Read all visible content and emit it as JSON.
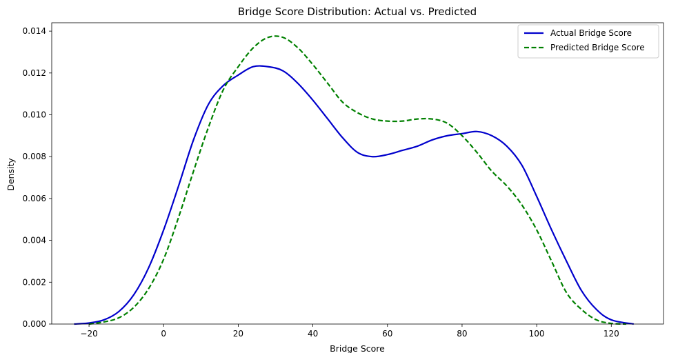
{
  "chart_data": {
    "type": "line",
    "title": "Bridge Score Distribution: Actual vs. Predicted",
    "xlabel": "Bridge Score",
    "ylabel": "Density",
    "xlim": [
      -30,
      134
    ],
    "ylim": [
      0,
      0.0144
    ],
    "x_ticks": [
      -20,
      0,
      20,
      40,
      60,
      80,
      100,
      120
    ],
    "x_tick_labels": [
      "−20",
      "0",
      "20",
      "40",
      "60",
      "80",
      "100",
      "120"
    ],
    "y_ticks": [
      0,
      0.002,
      0.004,
      0.006,
      0.008,
      0.01,
      0.012,
      0.014
    ],
    "y_tick_labels": [
      "0.000",
      "0.002",
      "0.004",
      "0.006",
      "0.008",
      "0.010",
      "0.012",
      "0.014"
    ],
    "grid": false,
    "legend": {
      "position": "top-right",
      "entries": [
        "Actual Bridge Score",
        "Predicted Bridge Score"
      ]
    },
    "series": [
      {
        "name": "Actual Bridge Score",
        "color": "#0000cc",
        "style": "solid",
        "points": [
          [
            -24,
            0.0
          ],
          [
            -20,
            5e-05
          ],
          [
            -16,
            0.0002
          ],
          [
            -12,
            0.0006
          ],
          [
            -8,
            0.0014
          ],
          [
            -4,
            0.0027
          ],
          [
            0,
            0.0045
          ],
          [
            4,
            0.0066
          ],
          [
            8,
            0.0088
          ],
          [
            12,
            0.0105
          ],
          [
            16,
            0.0114
          ],
          [
            20,
            0.0119
          ],
          [
            24,
            0.0123
          ],
          [
            28,
            0.0123
          ],
          [
            32,
            0.0121
          ],
          [
            36,
            0.0115
          ],
          [
            40,
            0.0107
          ],
          [
            44,
            0.0098
          ],
          [
            48,
            0.0089
          ],
          [
            52,
            0.0082
          ],
          [
            56,
            0.008
          ],
          [
            60,
            0.0081
          ],
          [
            64,
            0.0083
          ],
          [
            68,
            0.0085
          ],
          [
            72,
            0.0088
          ],
          [
            76,
            0.009
          ],
          [
            80,
            0.0091
          ],
          [
            84,
            0.0092
          ],
          [
            88,
            0.009
          ],
          [
            92,
            0.0085
          ],
          [
            96,
            0.0076
          ],
          [
            100,
            0.0061
          ],
          [
            104,
            0.0045
          ],
          [
            108,
            0.003
          ],
          [
            112,
            0.0016
          ],
          [
            116,
            0.0007
          ],
          [
            120,
            0.0002
          ],
          [
            126,
            0.0
          ]
        ]
      },
      {
        "name": "Predicted Bridge Score",
        "color": "#008000",
        "style": "dashed",
        "points": [
          [
            -20,
            0.0
          ],
          [
            -16,
            0.0001
          ],
          [
            -12,
            0.0003
          ],
          [
            -8,
            0.0008
          ],
          [
            -4,
            0.0017
          ],
          [
            0,
            0.0031
          ],
          [
            4,
            0.0051
          ],
          [
            8,
            0.0073
          ],
          [
            12,
            0.0094
          ],
          [
            16,
            0.0112
          ],
          [
            20,
            0.0123
          ],
          [
            24,
            0.0132
          ],
          [
            28,
            0.0137
          ],
          [
            32,
            0.0137
          ],
          [
            36,
            0.0132
          ],
          [
            40,
            0.0124
          ],
          [
            44,
            0.0115
          ],
          [
            48,
            0.0106
          ],
          [
            52,
            0.0101
          ],
          [
            56,
            0.0098
          ],
          [
            60,
            0.0097
          ],
          [
            64,
            0.0097
          ],
          [
            68,
            0.0098
          ],
          [
            72,
            0.0098
          ],
          [
            76,
            0.0096
          ],
          [
            80,
            0.009
          ],
          [
            84,
            0.0082
          ],
          [
            88,
            0.0073
          ],
          [
            92,
            0.0066
          ],
          [
            96,
            0.0057
          ],
          [
            100,
            0.0045
          ],
          [
            104,
            0.003
          ],
          [
            108,
            0.0015
          ],
          [
            112,
            0.0007
          ],
          [
            116,
            0.0002
          ],
          [
            120,
            3e-05
          ],
          [
            124,
            0.0
          ]
        ]
      }
    ]
  }
}
